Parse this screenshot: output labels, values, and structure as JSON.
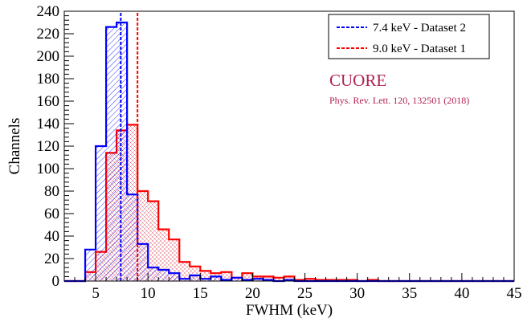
{
  "chart_data": {
    "type": "histogram",
    "xlabel": "FWHM (keV)",
    "ylabel": "Channels",
    "xlim": [
      2,
      45
    ],
    "ylim": [
      0,
      240
    ],
    "x_ticks": [
      5,
      10,
      15,
      20,
      25,
      30,
      35,
      40,
      45
    ],
    "y_ticks": [
      0,
      20,
      40,
      60,
      80,
      100,
      120,
      140,
      160,
      180,
      200,
      220,
      240
    ],
    "bin_width": 1,
    "bin_start": 2,
    "grid": false,
    "legend_position": "top-right",
    "series": [
      {
        "name": "Dataset 2",
        "color": "#0000ff",
        "fill_pattern": "diagonal-hatch",
        "values": [
          0,
          0,
          28,
          120,
          226,
          230,
          77,
          33,
          12,
          10,
          7,
          2,
          5,
          2,
          4,
          1,
          3,
          1,
          2,
          1,
          0,
          1,
          0,
          0,
          0,
          0,
          0,
          0,
          0,
          0,
          0,
          0,
          0,
          0,
          0,
          0,
          0,
          0,
          0,
          0,
          0,
          0,
          0
        ]
      },
      {
        "name": "Dataset 1",
        "color": "#ff0000",
        "fill_pattern": "cross-hatch",
        "values": [
          0,
          0,
          8,
          26,
          114,
          134,
          139,
          80,
          71,
          46,
          37,
          17,
          13,
          9,
          7,
          8,
          3,
          7,
          4,
          4,
          3,
          4,
          1,
          2,
          1,
          1,
          1,
          1,
          0,
          1,
          0,
          0,
          0,
          0,
          0,
          0,
          0,
          0,
          0,
          0,
          0,
          0,
          0
        ]
      }
    ],
    "vertical_lines": [
      {
        "x": 7.4,
        "color": "#0000ff",
        "style": "dashed",
        "label": "7.4 keV - Dataset 2"
      },
      {
        "x": 9.0,
        "color": "#ff0000",
        "style": "dashed",
        "label": "9.0 keV - Dataset 1"
      }
    ]
  },
  "legend": {
    "blue_label": "7.4 keV - Dataset 2",
    "red_label": "9.0 keV - Dataset 1"
  },
  "annotation": {
    "title": "CUORE",
    "reference": "Phys. Rev. Lett. 120, 132501 (2018)"
  }
}
